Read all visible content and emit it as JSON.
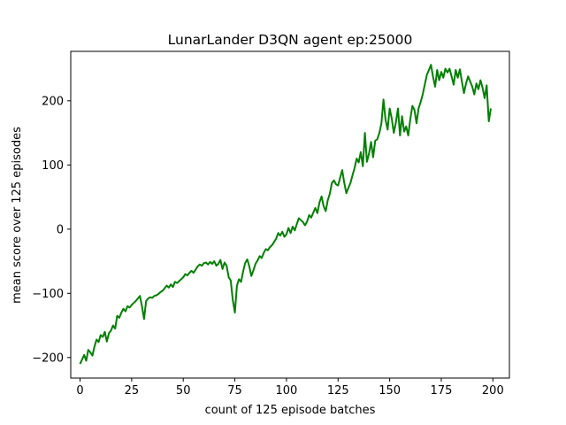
{
  "chart_data": {
    "type": "line",
    "title": "LunarLander D3QN agent ep:25000",
    "xlabel": "count of 125 episode batches",
    "ylabel": "mean score over 125 episodes",
    "xlim": [
      -4.5,
      208
    ],
    "ylim": [
      -232,
      277
    ],
    "xticks": [
      0,
      25,
      50,
      75,
      100,
      125,
      150,
      175,
      200
    ],
    "yticks": [
      -200,
      -100,
      0,
      100,
      200
    ],
    "grid": false,
    "legend": "none",
    "series": [
      {
        "color": "#008000",
        "points": [
          [
            0,
            -210
          ],
          [
            1,
            -203
          ],
          [
            2,
            -196
          ],
          [
            3,
            -205
          ],
          [
            4,
            -188
          ],
          [
            5,
            -192
          ],
          [
            6,
            -197
          ],
          [
            7,
            -183
          ],
          [
            8,
            -172
          ],
          [
            9,
            -176
          ],
          [
            10,
            -165
          ],
          [
            11,
            -168
          ],
          [
            12,
            -160
          ],
          [
            13,
            -175
          ],
          [
            14,
            -162
          ],
          [
            15,
            -158
          ],
          [
            16,
            -150
          ],
          [
            17,
            -155
          ],
          [
            18,
            -135
          ],
          [
            19,
            -138
          ],
          [
            20,
            -130
          ],
          [
            21,
            -124
          ],
          [
            22,
            -128
          ],
          [
            23,
            -120
          ],
          [
            24,
            -122
          ],
          [
            25,
            -118
          ],
          [
            26,
            -115
          ],
          [
            27,
            -112
          ],
          [
            28,
            -108
          ],
          [
            29,
            -104
          ],
          [
            30,
            -120
          ],
          [
            31,
            -140
          ],
          [
            32,
            -112
          ],
          [
            33,
            -108
          ],
          [
            34,
            -106
          ],
          [
            35,
            -107
          ],
          [
            36,
            -104
          ],
          [
            37,
            -103
          ],
          [
            38,
            -101
          ],
          [
            39,
            -98
          ],
          [
            40,
            -96
          ],
          [
            41,
            -92
          ],
          [
            42,
            -88
          ],
          [
            43,
            -91
          ],
          [
            44,
            -86
          ],
          [
            45,
            -90
          ],
          [
            46,
            -82
          ],
          [
            47,
            -84
          ],
          [
            48,
            -81
          ],
          [
            49,
            -78
          ],
          [
            50,
            -75
          ],
          [
            51,
            -70
          ],
          [
            52,
            -72
          ],
          [
            53,
            -68
          ],
          [
            54,
            -65
          ],
          [
            55,
            -68
          ],
          [
            56,
            -63
          ],
          [
            57,
            -58
          ],
          [
            58,
            -55
          ],
          [
            59,
            -57
          ],
          [
            60,
            -53
          ],
          [
            61,
            -52
          ],
          [
            62,
            -55
          ],
          [
            63,
            -51
          ],
          [
            64,
            -54
          ],
          [
            65,
            -50
          ],
          [
            66,
            -57
          ],
          [
            67,
            -54
          ],
          [
            68,
            -48
          ],
          [
            69,
            -62
          ],
          [
            70,
            -52
          ],
          [
            71,
            -57
          ],
          [
            72,
            -75
          ],
          [
            73,
            -80
          ],
          [
            74,
            -110
          ],
          [
            75,
            -130
          ],
          [
            76,
            -88
          ],
          [
            77,
            -78
          ],
          [
            78,
            -82
          ],
          [
            79,
            -66
          ],
          [
            80,
            -53
          ],
          [
            81,
            -47
          ],
          [
            82,
            -58
          ],
          [
            83,
            -73
          ],
          [
            84,
            -64
          ],
          [
            85,
            -54
          ],
          [
            86,
            -49
          ],
          [
            87,
            -42
          ],
          [
            88,
            -45
          ],
          [
            89,
            -37
          ],
          [
            90,
            -31
          ],
          [
            91,
            -33
          ],
          [
            92,
            -28
          ],
          [
            93,
            -25
          ],
          [
            94,
            -20
          ],
          [
            95,
            -15
          ],
          [
            96,
            -6
          ],
          [
            97,
            -10
          ],
          [
            98,
            -4
          ],
          [
            99,
            -12
          ],
          [
            100,
            -8
          ],
          [
            101,
            2
          ],
          [
            102,
            -6
          ],
          [
            103,
            4
          ],
          [
            104,
            -2
          ],
          [
            105,
            8
          ],
          [
            106,
            17
          ],
          [
            107,
            14
          ],
          [
            108,
            11
          ],
          [
            109,
            6
          ],
          [
            110,
            12
          ],
          [
            111,
            22
          ],
          [
            112,
            18
          ],
          [
            113,
            26
          ],
          [
            114,
            33
          ],
          [
            115,
            25
          ],
          [
            116,
            42
          ],
          [
            117,
            51
          ],
          [
            118,
            36
          ],
          [
            119,
            28
          ],
          [
            120,
            45
          ],
          [
            121,
            55
          ],
          [
            122,
            72
          ],
          [
            123,
            76
          ],
          [
            124,
            70
          ],
          [
            125,
            68
          ],
          [
            126,
            80
          ],
          [
            127,
            92
          ],
          [
            128,
            72
          ],
          [
            129,
            56
          ],
          [
            130,
            64
          ],
          [
            131,
            72
          ],
          [
            132,
            84
          ],
          [
            133,
            95
          ],
          [
            134,
            110
          ],
          [
            135,
            104
          ],
          [
            136,
            120
          ],
          [
            137,
            98
          ],
          [
            138,
            150
          ],
          [
            139,
            105
          ],
          [
            140,
            118
          ],
          [
            141,
            136
          ],
          [
            142,
            112
          ],
          [
            143,
            138
          ],
          [
            144,
            140
          ],
          [
            145,
            150
          ],
          [
            146,
            165
          ],
          [
            147,
            202
          ],
          [
            148,
            170
          ],
          [
            149,
            155
          ],
          [
            150,
            188
          ],
          [
            151,
            172
          ],
          [
            152,
            150
          ],
          [
            153,
            166
          ],
          [
            154,
            188
          ],
          [
            155,
            146
          ],
          [
            156,
            176
          ],
          [
            157,
            152
          ],
          [
            158,
            160
          ],
          [
            159,
            146
          ],
          [
            160,
            172
          ],
          [
            161,
            192
          ],
          [
            162,
            186
          ],
          [
            163,
            165
          ],
          [
            164,
            188
          ],
          [
            165,
            198
          ],
          [
            166,
            210
          ],
          [
            167,
            225
          ],
          [
            168,
            240
          ],
          [
            169,
            248
          ],
          [
            170,
            256
          ],
          [
            171,
            238
          ],
          [
            172,
            222
          ],
          [
            173,
            248
          ],
          [
            174,
            232
          ],
          [
            175,
            245
          ],
          [
            176,
            236
          ],
          [
            177,
            250
          ],
          [
            178,
            244
          ],
          [
            179,
            250
          ],
          [
            180,
            238
          ],
          [
            181,
            225
          ],
          [
            182,
            248
          ],
          [
            183,
            236
          ],
          [
            184,
            249
          ],
          [
            185,
            230
          ],
          [
            186,
            212
          ],
          [
            187,
            227
          ],
          [
            188,
            238
          ],
          [
            189,
            230
          ],
          [
            190,
            222
          ],
          [
            191,
            210
          ],
          [
            192,
            227
          ],
          [
            193,
            218
          ],
          [
            194,
            232
          ],
          [
            195,
            220
          ],
          [
            196,
            204
          ],
          [
            197,
            224
          ],
          [
            198,
            168
          ],
          [
            199,
            188
          ]
        ]
      }
    ]
  }
}
